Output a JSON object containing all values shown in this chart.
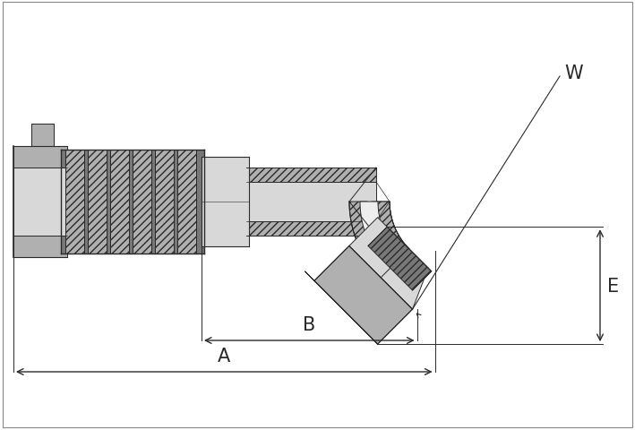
{
  "bg_color": "#ffffff",
  "line_color": "#2a2a2a",
  "gray_light": "#d8d8d8",
  "gray_mid": "#b0b0b0",
  "gray_dark": "#787878",
  "gray_white": "#eeeeee",
  "dim_color": "#2a2a2a",
  "label_W": "W",
  "label_E": "E",
  "label_B": "B",
  "label_A": "A",
  "font_size_dim": 14,
  "fig_width": 7.09,
  "fig_height": 4.81
}
